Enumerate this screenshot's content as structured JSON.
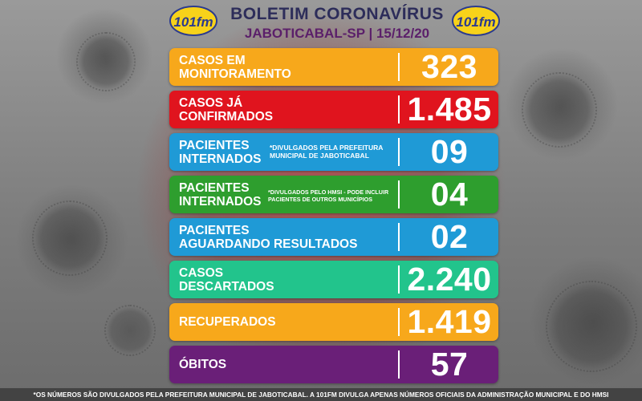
{
  "header": {
    "title": "BOLETIM CORONAVÍRUS",
    "subtitle": "JABOTICABAL-SP | 15/12/20",
    "logo_text": "101fm",
    "colors": {
      "title": "#2d2d5a",
      "subtitle": "#5b1f6a",
      "logo_yellow": "#f7d21a",
      "logo_blue": "#2b3b8f"
    }
  },
  "cards": [
    {
      "label1": "CASOS EM",
      "label2": "MONITORAMENTO",
      "value": "323",
      "color": "#f7a81b"
    },
    {
      "label1": "CASOS JÁ",
      "label2": "CONFIRMADOS",
      "value": "1.485",
      "color": "#e0141e"
    },
    {
      "label1": "PACIENTES",
      "label2": "INTERNADOS",
      "note1": "*DIVULGADOS PELA PREFEITURA",
      "note2": "MUNICIPAL DE JABOTICABAL",
      "value": "09",
      "color": "#1f9ad6"
    },
    {
      "label1": "PACIENTES",
      "label2": "INTERNADOS",
      "note1": "*DIVULGADOS PELO HMSI - PODE INCLUIR",
      "note2": "PACIENTES DE OUTROS MUNICÍPIOS",
      "value": "04",
      "color": "#2e9e2e"
    },
    {
      "label1": "PACIENTES",
      "label2": "AGUARDANDO RESULTADOS",
      "value": "02",
      "color": "#1f9ad6"
    },
    {
      "label1": "CASOS",
      "label2": "DESCARTADOS",
      "value": "2.240",
      "color": "#22c48c"
    },
    {
      "label1": "RECUPERADOS",
      "value": "1.419",
      "color": "#f7a81b"
    },
    {
      "label1": "ÓBITOS",
      "value": "57",
      "color": "#6a1f78"
    }
  ],
  "footer": {
    "text": "*OS NÚMEROS SÃO DIVULGADOS PELA PREFEITURA MUNICIPAL DE JABOTICABAL. A 101FM DIVULGA APENAS NÚMEROS OFICIAIS DA ADMINISTRAÇÃO MUNICIPAL E DO HMSI"
  }
}
